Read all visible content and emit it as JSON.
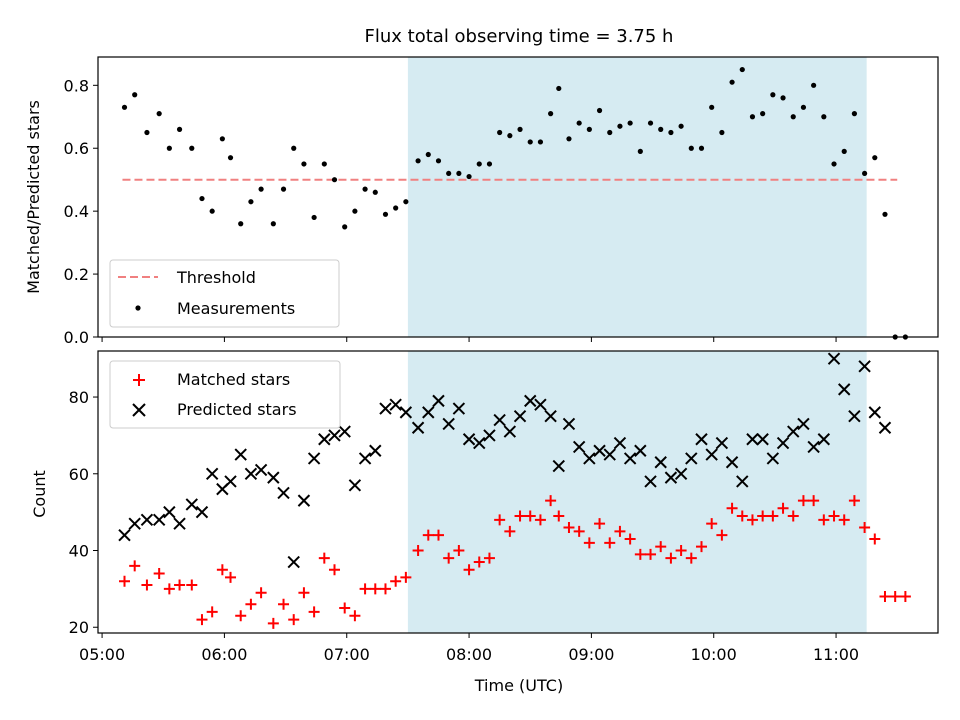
{
  "figure": {
    "title": "Flux total observing time = 3.75 h",
    "xlabel": "Time (UTC)"
  },
  "chart_data": [
    {
      "type": "scatter",
      "panel": "top",
      "ylabel": "Matched/Predicted stars",
      "ylim": [
        0,
        0.89
      ],
      "yticks": [
        "0.0",
        "0.2",
        "0.4",
        "0.6",
        "0.8"
      ],
      "xlim": [
        "04:58",
        "11:50"
      ],
      "shaded_interval": [
        "07:30",
        "11:15"
      ],
      "shade_color": "#add8e6",
      "threshold": {
        "name": "Threshold",
        "value": 0.5,
        "x_range": [
          "05:10",
          "11:30"
        ],
        "color": "#f08080",
        "style": "dashed"
      },
      "series": [
        {
          "name": "Measurements",
          "marker": "dot",
          "color": "#000000",
          "points": [
            [
              "05:11",
              0.73
            ],
            [
              "05:16",
              0.77
            ],
            [
              "05:22",
              0.65
            ],
            [
              "05:28",
              0.71
            ],
            [
              "05:33",
              0.6
            ],
            [
              "05:38",
              0.66
            ],
            [
              "05:44",
              0.6
            ],
            [
              "05:49",
              0.44
            ],
            [
              "05:54",
              0.4
            ],
            [
              "05:59",
              0.63
            ],
            [
              "06:03",
              0.57
            ],
            [
              "06:08",
              0.36
            ],
            [
              "06:13",
              0.43
            ],
            [
              "06:18",
              0.47
            ],
            [
              "06:24",
              0.36
            ],
            [
              "06:29",
              0.47
            ],
            [
              "06:34",
              0.6
            ],
            [
              "06:39",
              0.55
            ],
            [
              "06:44",
              0.38
            ],
            [
              "06:49",
              0.55
            ],
            [
              "06:54",
              0.5
            ],
            [
              "06:59",
              0.35
            ],
            [
              "07:04",
              0.4
            ],
            [
              "07:09",
              0.47
            ],
            [
              "07:14",
              0.46
            ],
            [
              "07:19",
              0.39
            ],
            [
              "07:24",
              0.41
            ],
            [
              "07:29",
              0.43
            ],
            [
              "07:35",
              0.56
            ],
            [
              "07:40",
              0.58
            ],
            [
              "07:45",
              0.56
            ],
            [
              "07:50",
              0.52
            ],
            [
              "07:55",
              0.52
            ],
            [
              "08:00",
              0.51
            ],
            [
              "08:05",
              0.55
            ],
            [
              "08:10",
              0.55
            ],
            [
              "08:15",
              0.65
            ],
            [
              "08:20",
              0.64
            ],
            [
              "08:25",
              0.66
            ],
            [
              "08:30",
              0.62
            ],
            [
              "08:35",
              0.62
            ],
            [
              "08:40",
              0.71
            ],
            [
              "08:44",
              0.79
            ],
            [
              "08:49",
              0.63
            ],
            [
              "08:54",
              0.68
            ],
            [
              "08:59",
              0.66
            ],
            [
              "09:04",
              0.72
            ],
            [
              "09:09",
              0.65
            ],
            [
              "09:14",
              0.67
            ],
            [
              "09:19",
              0.68
            ],
            [
              "09:24",
              0.59
            ],
            [
              "09:29",
              0.68
            ],
            [
              "09:34",
              0.66
            ],
            [
              "09:39",
              0.65
            ],
            [
              "09:44",
              0.67
            ],
            [
              "09:49",
              0.6
            ],
            [
              "09:54",
              0.6
            ],
            [
              "09:59",
              0.73
            ],
            [
              "10:04",
              0.65
            ],
            [
              "10:09",
              0.81
            ],
            [
              "10:14",
              0.85
            ],
            [
              "10:19",
              0.7
            ],
            [
              "10:24",
              0.71
            ],
            [
              "10:29",
              0.77
            ],
            [
              "10:34",
              0.76
            ],
            [
              "10:39",
              0.7
            ],
            [
              "10:44",
              0.73
            ],
            [
              "10:49",
              0.8
            ],
            [
              "10:54",
              0.7
            ],
            [
              "10:59",
              0.55
            ],
            [
              "11:04",
              0.59
            ],
            [
              "11:09",
              0.71
            ],
            [
              "11:14",
              0.52
            ],
            [
              "11:19",
              0.57
            ],
            [
              "11:24",
              0.39
            ],
            [
              "11:29",
              0.0
            ],
            [
              "11:34",
              0.0
            ]
          ]
        }
      ],
      "legend": {
        "placement": "lower-left"
      }
    },
    {
      "type": "scatter",
      "panel": "bottom",
      "ylabel": "Count",
      "ylim": [
        18.5,
        92
      ],
      "yticks": [
        "20",
        "40",
        "60",
        "80"
      ],
      "xlim": [
        "04:58",
        "11:50"
      ],
      "xticks": [
        "05:00",
        "06:00",
        "07:00",
        "08:00",
        "09:00",
        "10:00",
        "11:00"
      ],
      "shaded_interval": [
        "07:30",
        "11:15"
      ],
      "shade_color": "#add8e6",
      "series": [
        {
          "name": "Matched stars",
          "marker": "plus",
          "color": "#ff0000",
          "points": [
            [
              "05:11",
              32
            ],
            [
              "05:16",
              36
            ],
            [
              "05:22",
              31
            ],
            [
              "05:28",
              34
            ],
            [
              "05:33",
              30
            ],
            [
              "05:38",
              31
            ],
            [
              "05:44",
              31
            ],
            [
              "05:49",
              22
            ],
            [
              "05:54",
              24
            ],
            [
              "05:59",
              35
            ],
            [
              "06:03",
              33
            ],
            [
              "06:08",
              23
            ],
            [
              "06:13",
              26
            ],
            [
              "06:18",
              29
            ],
            [
              "06:24",
              21
            ],
            [
              "06:29",
              26
            ],
            [
              "06:34",
              22
            ],
            [
              "06:39",
              29
            ],
            [
              "06:44",
              24
            ],
            [
              "06:49",
              38
            ],
            [
              "06:54",
              35
            ],
            [
              "06:59",
              25
            ],
            [
              "07:04",
              23
            ],
            [
              "07:09",
              30
            ],
            [
              "07:14",
              30
            ],
            [
              "07:19",
              30
            ],
            [
              "07:24",
              32
            ],
            [
              "07:29",
              33
            ],
            [
              "07:35",
              40
            ],
            [
              "07:40",
              44
            ],
            [
              "07:45",
              44
            ],
            [
              "07:50",
              38
            ],
            [
              "07:55",
              40
            ],
            [
              "08:00",
              35
            ],
            [
              "08:05",
              37
            ],
            [
              "08:10",
              38
            ],
            [
              "08:15",
              48
            ],
            [
              "08:20",
              45
            ],
            [
              "08:25",
              49
            ],
            [
              "08:30",
              49
            ],
            [
              "08:35",
              48
            ],
            [
              "08:40",
              53
            ],
            [
              "08:44",
              49
            ],
            [
              "08:49",
              46
            ],
            [
              "08:54",
              45
            ],
            [
              "08:59",
              42
            ],
            [
              "09:04",
              47
            ],
            [
              "09:09",
              42
            ],
            [
              "09:14",
              45
            ],
            [
              "09:19",
              43
            ],
            [
              "09:24",
              39
            ],
            [
              "09:29",
              39
            ],
            [
              "09:34",
              41
            ],
            [
              "09:39",
              38
            ],
            [
              "09:44",
              40
            ],
            [
              "09:49",
              38
            ],
            [
              "09:54",
              41
            ],
            [
              "09:59",
              47
            ],
            [
              "10:04",
              44
            ],
            [
              "10:09",
              51
            ],
            [
              "10:14",
              49
            ],
            [
              "10:19",
              48
            ],
            [
              "10:24",
              49
            ],
            [
              "10:29",
              49
            ],
            [
              "10:34",
              51
            ],
            [
              "10:39",
              49
            ],
            [
              "10:44",
              53
            ],
            [
              "10:49",
              53
            ],
            [
              "10:54",
              48
            ],
            [
              "10:59",
              49
            ],
            [
              "11:04",
              48
            ],
            [
              "11:09",
              53
            ],
            [
              "11:14",
              46
            ],
            [
              "11:19",
              43
            ],
            [
              "11:24",
              28
            ],
            [
              "11:29",
              28
            ],
            [
              "11:34",
              28
            ]
          ]
        },
        {
          "name": "Predicted stars",
          "marker": "x",
          "color": "#000000",
          "points": [
            [
              "05:11",
              44
            ],
            [
              "05:16",
              47
            ],
            [
              "05:22",
              48
            ],
            [
              "05:28",
              48
            ],
            [
              "05:33",
              50
            ],
            [
              "05:38",
              47
            ],
            [
              "05:44",
              52
            ],
            [
              "05:49",
              50
            ],
            [
              "05:54",
              60
            ],
            [
              "05:59",
              56
            ],
            [
              "06:03",
              58
            ],
            [
              "06:08",
              65
            ],
            [
              "06:13",
              60
            ],
            [
              "06:18",
              61
            ],
            [
              "06:24",
              59
            ],
            [
              "06:29",
              55
            ],
            [
              "06:34",
              37
            ],
            [
              "06:39",
              53
            ],
            [
              "06:44",
              64
            ],
            [
              "06:49",
              69
            ],
            [
              "06:54",
              70
            ],
            [
              "06:59",
              71
            ],
            [
              "07:04",
              57
            ],
            [
              "07:09",
              64
            ],
            [
              "07:14",
              66
            ],
            [
              "07:19",
              77
            ],
            [
              "07:24",
              78
            ],
            [
              "07:29",
              76
            ],
            [
              "07:35",
              72
            ],
            [
              "07:40",
              76
            ],
            [
              "07:45",
              79
            ],
            [
              "07:50",
              73
            ],
            [
              "07:55",
              77
            ],
            [
              "08:00",
              69
            ],
            [
              "08:05",
              68
            ],
            [
              "08:10",
              70
            ],
            [
              "08:15",
              74
            ],
            [
              "08:20",
              71
            ],
            [
              "08:25",
              75
            ],
            [
              "08:30",
              79
            ],
            [
              "08:35",
              78
            ],
            [
              "08:40",
              75
            ],
            [
              "08:44",
              62
            ],
            [
              "08:49",
              73
            ],
            [
              "08:54",
              67
            ],
            [
              "08:59",
              64
            ],
            [
              "09:04",
              66
            ],
            [
              "09:09",
              65
            ],
            [
              "09:14",
              68
            ],
            [
              "09:19",
              64
            ],
            [
              "09:24",
              66
            ],
            [
              "09:29",
              58
            ],
            [
              "09:34",
              63
            ],
            [
              "09:39",
              59
            ],
            [
              "09:44",
              60
            ],
            [
              "09:49",
              64
            ],
            [
              "09:54",
              69
            ],
            [
              "09:59",
              65
            ],
            [
              "10:04",
              68
            ],
            [
              "10:09",
              63
            ],
            [
              "10:14",
              58
            ],
            [
              "10:19",
              69
            ],
            [
              "10:24",
              69
            ],
            [
              "10:29",
              64
            ],
            [
              "10:34",
              68
            ],
            [
              "10:39",
              71
            ],
            [
              "10:44",
              73
            ],
            [
              "10:49",
              67
            ],
            [
              "10:54",
              69
            ],
            [
              "10:59",
              90
            ],
            [
              "11:04",
              82
            ],
            [
              "11:09",
              75
            ],
            [
              "11:14",
              88
            ],
            [
              "11:19",
              76
            ],
            [
              "11:24",
              72
            ]
          ]
        }
      ],
      "legend": {
        "placement": "upper-left"
      }
    }
  ]
}
